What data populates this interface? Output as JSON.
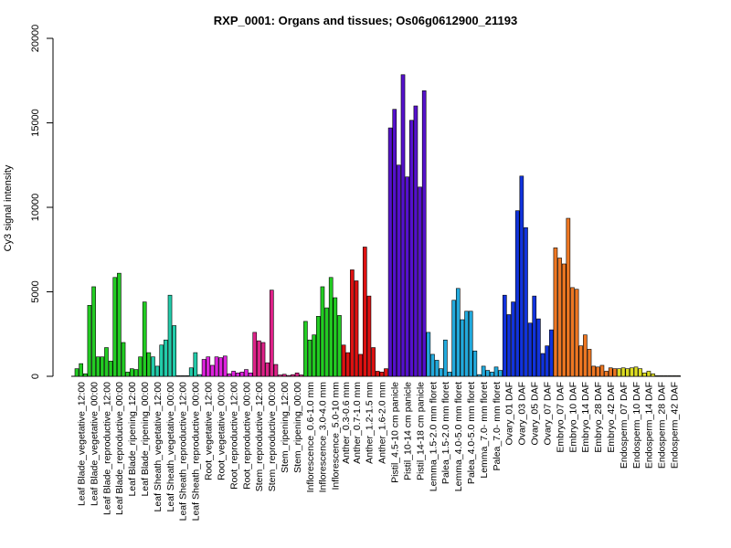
{
  "chart_data": {
    "type": "bar",
    "title": "RXP_0001: Organs and tissues; Os06g0612900_21193",
    "xlabel": "",
    "ylabel": "Cy3 signal intensity",
    "ylim": [
      0,
      20000
    ],
    "yticks": [
      0,
      5000,
      10000,
      15000,
      20000
    ],
    "grid": false,
    "legend": "none",
    "groups": [
      {
        "label": "Leaf Blade_vegetative_12:00",
        "color": "#22cc22",
        "values": [
          450,
          750,
          150
        ]
      },
      {
        "label": "Leaf Blade_vegetative_00:00",
        "color": "#22cc22",
        "values": [
          4200,
          5300,
          1150
        ]
      },
      {
        "label": "Leaf Blade_reproductive_12:00",
        "color": "#22cc22",
        "values": [
          1150,
          1700,
          900
        ]
      },
      {
        "label": "Leaf Blade_reproductive_00:00",
        "color": "#22cc22",
        "values": [
          5850,
          6100,
          2000
        ]
      },
      {
        "label": "Leaf Blade_ripening_12:00",
        "color": "#22cc22",
        "values": [
          250,
          450,
          400
        ]
      },
      {
        "label": "Leaf Blade_ripening_00:00",
        "color": "#22cc22",
        "values": [
          1150,
          4400,
          1400
        ]
      },
      {
        "label": "Leaf Sheath_vegetative_12:00",
        "color": "#22ccaa",
        "values": [
          1150,
          600,
          1850
        ]
      },
      {
        "label": "Leaf Sheath_vegetative_00:00",
        "color": "#22ccaa",
        "values": [
          2150,
          4800,
          3000
        ]
      },
      {
        "label": "Leaf Sheath_reproductive_12:00",
        "color": "#22ccaa",
        "values": [
          30,
          30,
          30
        ]
      },
      {
        "label": "Leaf Sheath_reproductive_00:00",
        "color": "#22ccaa",
        "values": [
          500,
          1400,
          100
        ]
      },
      {
        "label": "Root_vegetative_12:00",
        "color": "#dd22dd",
        "values": [
          1000,
          1150,
          650
        ]
      },
      {
        "label": "Root_vegetative_00:00",
        "color": "#dd22dd",
        "values": [
          1150,
          1100,
          1200
        ]
      },
      {
        "label": "Root_reproductive_12:00",
        "color": "#dd22dd",
        "values": [
          150,
          300,
          200
        ]
      },
      {
        "label": "Root_reproductive_00:00",
        "color": "#dd22dd",
        "values": [
          250,
          400,
          200
        ]
      },
      {
        "label": "Stem_reproductive_12:00",
        "color": "#dd2288",
        "values": [
          2600,
          2100,
          2000
        ]
      },
      {
        "label": "Stem_reproductive_00:00",
        "color": "#dd2288",
        "values": [
          800,
          5100,
          700
        ]
      },
      {
        "label": "Stem_ripening_12:00",
        "color": "#dd2288",
        "values": [
          80,
          120,
          50
        ]
      },
      {
        "label": "Stem_ripening_00:00",
        "color": "#dd2288",
        "values": [
          100,
          200,
          80
        ]
      },
      {
        "label": "Inflorescence_0.6-1.0 mm",
        "color": "#22cc22",
        "values": [
          3250,
          2150,
          2450
        ]
      },
      {
        "label": "Inflorescence_3.0-4.0 mm",
        "color": "#22cc22",
        "values": [
          3550,
          5300,
          4050
        ]
      },
      {
        "label": "Inflorescence_5.0-10 mm",
        "color": "#22cc22",
        "values": [
          5850,
          4650,
          3600
        ]
      },
      {
        "label": "Anther_0.3-0.6 mm",
        "color": "#dd1111",
        "values": [
          1850,
          1400
        ]
      },
      {
        "label": "Anther_0.7-1.0 mm",
        "color": "#dd1111",
        "values": [
          6300,
          5650,
          1300
        ]
      },
      {
        "label": "Anther_1.2-1.5 mm",
        "color": "#dd1111",
        "values": [
          7650,
          4750,
          1700
        ]
      },
      {
        "label": "Anther_1.6-2.0 mm",
        "color": "#dd1111",
        "values": [
          300,
          250,
          450
        ]
      },
      {
        "label": "Pistil_4.5-10 cm panicle",
        "color": "#5511cc",
        "values": [
          14700,
          15800,
          12500
        ]
      },
      {
        "label": "Pistil_10-14 cm panicle",
        "color": "#5511cc",
        "values": [
          17850,
          11800,
          15150
        ]
      },
      {
        "label": "Pistil_14-18 cm panicle",
        "color": "#5511cc",
        "values": [
          16000,
          11200,
          16900
        ]
      },
      {
        "label": "Lemma_1.5-2.0 mm floret",
        "color": "#22aadd",
        "values": [
          2600,
          1300,
          950
        ]
      },
      {
        "label": "Palea_1.5-2.0 mm floret",
        "color": "#22aadd",
        "values": [
          450,
          2150,
          250
        ]
      },
      {
        "label": "Lemma_4.0-5.0 mm floret",
        "color": "#22aadd",
        "values": [
          4500,
          5200,
          3350
        ]
      },
      {
        "label": "Palea_4.0-5.0 mm floret",
        "color": "#22aadd",
        "values": [
          3850,
          3850,
          1500
        ]
      },
      {
        "label": "Lemma_7.0- mm floret",
        "color": "#22aadd",
        "values": [
          100,
          600,
          350
        ]
      },
      {
        "label": "Palea_7.0- mm floret",
        "color": "#22aadd",
        "values": [
          250,
          550,
          350
        ]
      },
      {
        "label": "Ovary_01 DAF",
        "color": "#1133dd",
        "values": [
          4800,
          3650,
          4400
        ]
      },
      {
        "label": "Ovary_03 DAF",
        "color": "#1133dd",
        "values": [
          9800,
          11850,
          8800
        ]
      },
      {
        "label": "Ovary_05 DAF",
        "color": "#1133dd",
        "values": [
          3150,
          4750,
          3400
        ]
      },
      {
        "label": "Ovary_07 DAF",
        "color": "#1133dd",
        "values": [
          1350,
          1800,
          2750
        ]
      },
      {
        "label": "Embryo_07 DAF",
        "color": "#ee7722",
        "values": [
          7600,
          7000,
          6650
        ]
      },
      {
        "label": "Embryo_10 DAF",
        "color": "#ee7722",
        "values": [
          9350,
          5250,
          5150
        ]
      },
      {
        "label": "Embryo_14 DAF",
        "color": "#ee7722",
        "values": [
          1800,
          2450,
          1600
        ]
      },
      {
        "label": "Embryo_28 DAF",
        "color": "#ee7722",
        "values": [
          600,
          550,
          650
        ]
      },
      {
        "label": "Embryo_42 DAF",
        "color": "#ee7722",
        "values": [
          300,
          500,
          450
        ]
      },
      {
        "label": "Endosperm_07 DAF",
        "color": "#dddd22",
        "values": [
          450,
          500,
          450
        ]
      },
      {
        "label": "Endosperm_10 DAF",
        "color": "#dddd22",
        "values": [
          500,
          550,
          450
        ]
      },
      {
        "label": "Endosperm_14 DAF",
        "color": "#dddd22",
        "values": [
          200,
          300,
          150
        ]
      },
      {
        "label": "Endosperm_28 DAF",
        "color": "#dddd22",
        "values": [
          30,
          30,
          30
        ]
      },
      {
        "label": "Endosperm_42 DAF",
        "color": "#dddd22",
        "values": [
          30,
          30,
          30
        ]
      }
    ]
  }
}
